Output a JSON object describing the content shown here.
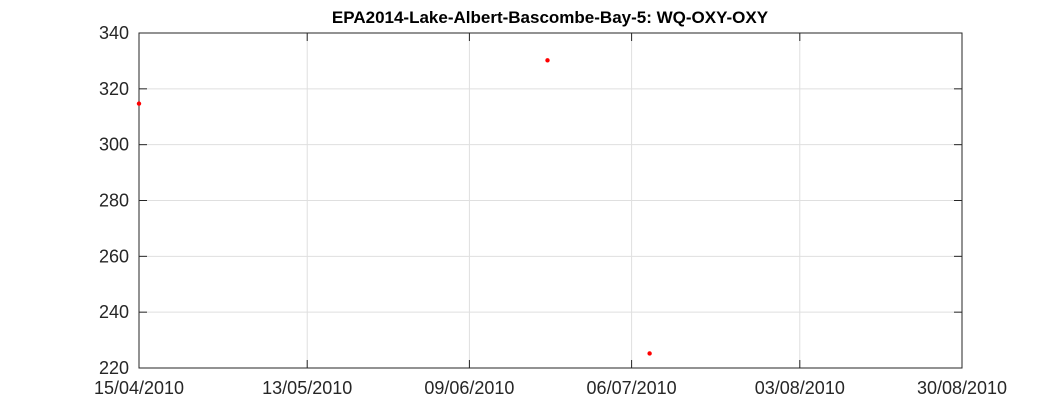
{
  "chart_data": {
    "type": "scatter",
    "title": "EPA2014-Lake-Albert-Bascombe-Bay-5: WQ-OXY-OXY",
    "xlabel": "",
    "ylabel": "",
    "x_axis_type": "date",
    "xlim": [
      "2010-04-15",
      "2010-08-30"
    ],
    "ylim": [
      220,
      340
    ],
    "x_ticks": [
      "2010-04-15",
      "2010-05-13",
      "2010-06-09",
      "2010-07-06",
      "2010-08-03",
      "2010-08-30"
    ],
    "x_tick_labels": [
      "15/04/2010",
      "13/05/2010",
      "09/06/2010",
      "06/07/2010",
      "03/08/2010",
      "30/08/2010"
    ],
    "y_ticks": [
      220,
      240,
      260,
      280,
      300,
      320,
      340
    ],
    "y_tick_labels": [
      "220",
      "240",
      "260",
      "280",
      "300",
      "320",
      "340"
    ],
    "grid": true,
    "marker_color": "#ff0000",
    "series": [
      {
        "points": [
          {
            "x": "2010-04-15",
            "y": 314.7
          },
          {
            "x": "2010-06-22",
            "y": 330.2
          },
          {
            "x": "2010-07-09",
            "y": 225.2
          }
        ]
      }
    ]
  }
}
